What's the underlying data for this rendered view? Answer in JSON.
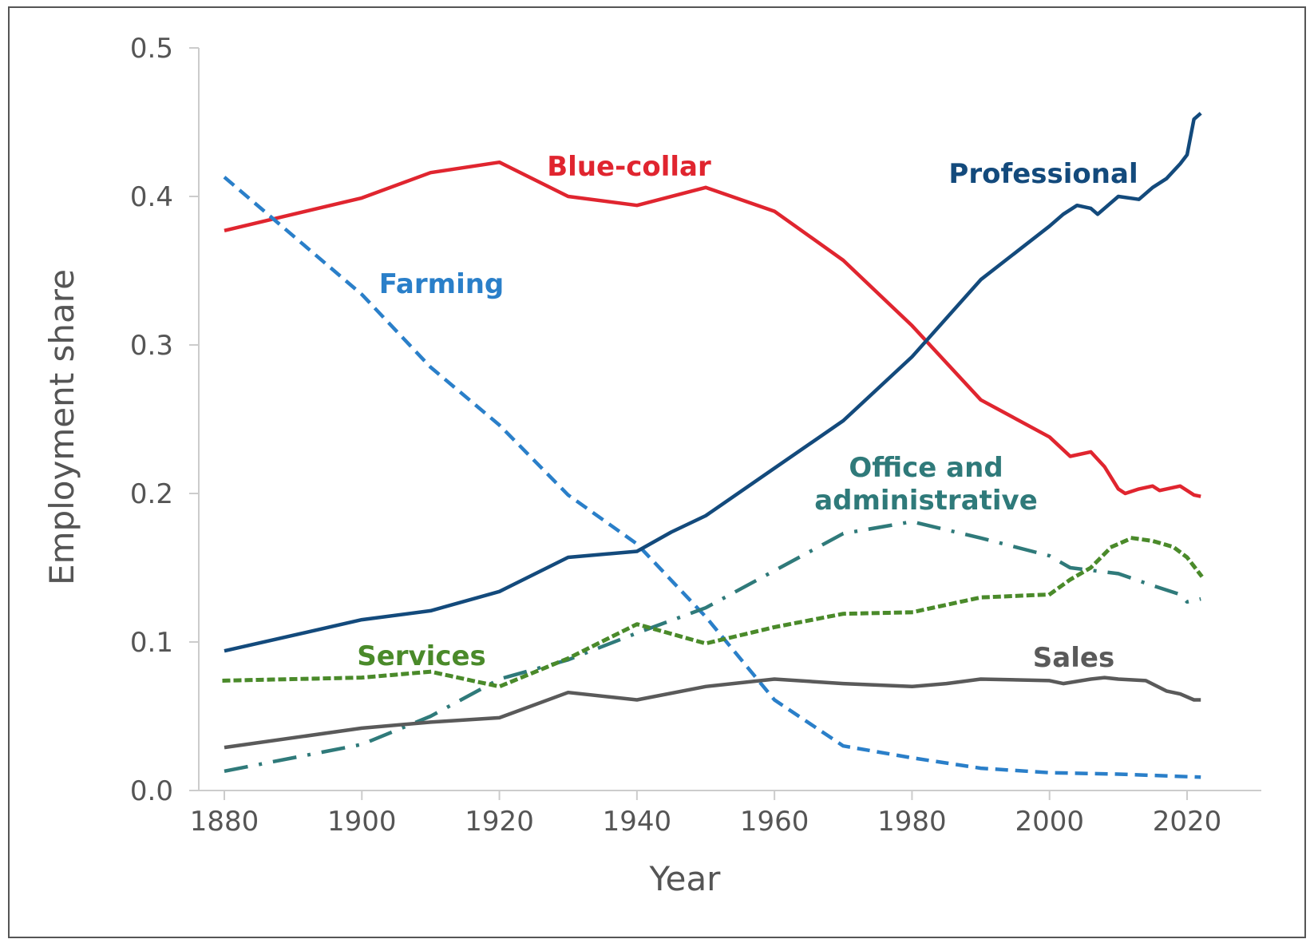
{
  "chart_data": {
    "type": "line",
    "title": "",
    "xlabel": "Year",
    "ylabel": "Employment share",
    "xlim": [
      1880,
      2022
    ],
    "ylim": [
      0,
      0.5
    ],
    "xticks": [
      "1880",
      "1900",
      "1920",
      "1940",
      "1960",
      "1980",
      "2000",
      "2020"
    ],
    "yticks": [
      "0.0",
      "0.1",
      "0.2",
      "0.3",
      "0.4",
      "0.5"
    ],
    "grid": false,
    "legend": "inline labels",
    "series": [
      {
        "name": "Blue-collar",
        "color": "#e0252f",
        "style": "solid",
        "x": [
          1880,
          1900,
          1910,
          1920,
          1930,
          1940,
          1950,
          1960,
          1970,
          1980,
          1990,
          2000,
          2003,
          2006,
          2008,
          2010,
          2011,
          2013,
          2015,
          2016,
          2019,
          2021,
          2022
        ],
        "y": [
          0.377,
          0.399,
          0.416,
          0.423,
          0.4,
          0.394,
          0.406,
          0.39,
          0.357,
          0.313,
          0.263,
          0.238,
          0.225,
          0.228,
          0.218,
          0.203,
          0.2,
          0.203,
          0.205,
          0.202,
          0.205,
          0.199,
          0.198
        ]
      },
      {
        "name": "Farming",
        "color": "#2a7fc9",
        "style": "dashed",
        "x": [
          1880,
          1900,
          1910,
          1920,
          1930,
          1940,
          1950,
          1960,
          1970,
          1980,
          1990,
          2000,
          2010,
          2022
        ],
        "y": [
          0.413,
          0.334,
          0.285,
          0.246,
          0.199,
          0.166,
          0.117,
          0.061,
          0.03,
          0.022,
          0.015,
          0.012,
          0.011,
          0.009
        ]
      },
      {
        "name": "Professional",
        "color": "#134a7c",
        "style": "solid",
        "x": [
          1880,
          1900,
          1910,
          1920,
          1930,
          1940,
          1945,
          1950,
          1960,
          1970,
          1980,
          1990,
          2000,
          2002,
          2004,
          2006,
          2007,
          2010,
          2013,
          2015,
          2017,
          2019,
          2020,
          2021,
          2022
        ],
        "y": [
          0.094,
          0.115,
          0.121,
          0.134,
          0.157,
          0.161,
          0.174,
          0.185,
          0.217,
          0.249,
          0.292,
          0.344,
          0.38,
          0.388,
          0.394,
          0.392,
          0.388,
          0.4,
          0.398,
          0.406,
          0.412,
          0.422,
          0.428,
          0.452,
          0.456
        ]
      },
      {
        "name": "Office and administrative",
        "color": "#2f7a7a",
        "style": "dashdot",
        "x": [
          1880,
          1900,
          1910,
          1920,
          1930,
          1940,
          1950,
          1960,
          1970,
          1980,
          1990,
          2000,
          2003,
          2010,
          2015,
          2019,
          2020,
          2022
        ],
        "y": [
          0.013,
          0.031,
          0.05,
          0.075,
          0.088,
          0.106,
          0.123,
          0.148,
          0.173,
          0.181,
          0.17,
          0.158,
          0.15,
          0.146,
          0.138,
          0.132,
          0.127,
          0.129
        ]
      },
      {
        "name": "Services",
        "color": "#4a8a2a",
        "style": "dotted",
        "x": [
          1880,
          1900,
          1910,
          1920,
          1930,
          1940,
          1950,
          1960,
          1970,
          1980,
          1990,
          2000,
          2003,
          2006,
          2009,
          2012,
          2015,
          2018,
          2020,
          2022
        ],
        "y": [
          0.074,
          0.076,
          0.08,
          0.07,
          0.089,
          0.112,
          0.099,
          0.11,
          0.119,
          0.12,
          0.13,
          0.132,
          0.142,
          0.15,
          0.164,
          0.17,
          0.168,
          0.164,
          0.157,
          0.145
        ]
      },
      {
        "name": "Sales",
        "color": "#5a5a5a",
        "style": "solid",
        "x": [
          1880,
          1900,
          1910,
          1920,
          1930,
          1940,
          1950,
          1960,
          1970,
          1980,
          1985,
          1990,
          2000,
          2002,
          2006,
          2008,
          2010,
          2014,
          2017,
          2019,
          2021,
          2022
        ],
        "y": [
          0.029,
          0.042,
          0.046,
          0.049,
          0.066,
          0.061,
          0.07,
          0.075,
          0.072,
          0.07,
          0.072,
          0.075,
          0.074,
          0.072,
          0.075,
          0.076,
          0.075,
          0.074,
          0.067,
          0.065,
          0.061,
          0.061
        ]
      }
    ],
    "labels": {
      "blue_collar": "Blue-collar",
      "farming": "Farming",
      "professional": "Professional",
      "office_1": "Office and",
      "office_2": "administrative",
      "services": "Services",
      "sales": "Sales"
    }
  }
}
